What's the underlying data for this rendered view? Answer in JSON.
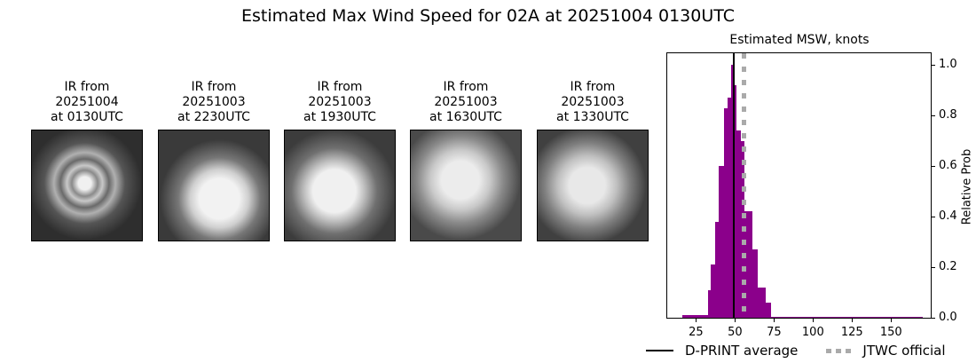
{
  "figure": {
    "title": "Estimated Max Wind Speed for 02A at 20251004 0130UTC"
  },
  "ir_panels": [
    {
      "line1": "IR from",
      "line2": "20251004",
      "line3": "at 0130UTC"
    },
    {
      "line1": "IR from",
      "line2": "20251003",
      "line3": "at 2230UTC"
    },
    {
      "line1": "IR from",
      "line2": "20251003",
      "line3": "at 1930UTC"
    },
    {
      "line1": "IR from",
      "line2": "20251003",
      "line3": "at 1630UTC"
    },
    {
      "line1": "IR from",
      "line2": "20251003",
      "line3": "at 1330UTC"
    }
  ],
  "colors": {
    "histogram": "#8b008b",
    "mean_line": "#000000",
    "jtwc_line": "#aaaaaa"
  },
  "chart_data": {
    "type": "bar",
    "title": "Estimated MSW, knots",
    "xlabel": "",
    "ylabel": "Relative Prob",
    "xlim": [
      6,
      176
    ],
    "ylim": [
      0,
      1.05
    ],
    "xticks": [
      25,
      50,
      75,
      100,
      125,
      150
    ],
    "yticks": [
      "0.0",
      "0.2",
      "0.4",
      "0.6",
      "0.8",
      "1.0"
    ],
    "bins": [
      {
        "x0": 15.7,
        "x1": 32.0,
        "value": 0.01
      },
      {
        "x0": 32.0,
        "x1": 33.8,
        "value": 0.11
      },
      {
        "x0": 33.8,
        "x1": 36.7,
        "value": 0.21
      },
      {
        "x0": 36.7,
        "x1": 39.0,
        "value": 0.38
      },
      {
        "x0": 39.0,
        "x1": 42.4,
        "value": 0.6
      },
      {
        "x0": 42.4,
        "x1": 44.6,
        "value": 0.83
      },
      {
        "x0": 44.6,
        "x1": 46.9,
        "value": 0.87
      },
      {
        "x0": 46.9,
        "x1": 49.2,
        "value": 1.0
      },
      {
        "x0": 49.2,
        "x1": 50.3,
        "value": 0.92
      },
      {
        "x0": 50.3,
        "x1": 53.2,
        "value": 0.74
      },
      {
        "x0": 53.2,
        "x1": 55.4,
        "value": 0.7
      },
      {
        "x0": 55.4,
        "x1": 60.5,
        "value": 0.42
      },
      {
        "x0": 60.5,
        "x1": 64.0,
        "value": 0.27
      },
      {
        "x0": 64.0,
        "x1": 69.0,
        "value": 0.12
      },
      {
        "x0": 69.0,
        "x1": 72.5,
        "value": 0.06
      },
      {
        "x0": 72.5,
        "x1": 170.0,
        "value": 0.005
      }
    ],
    "vlines": [
      {
        "name": "D-PRINT average",
        "x": 48.5,
        "style": "solid",
        "color": "#000000"
      },
      {
        "name": "JTWC official",
        "x": 55,
        "style": "dotted",
        "color": "#aaaaaa"
      }
    ],
    "legend": [
      "D-PRINT average",
      "JTWC official"
    ],
    "legend_position": "bottom",
    "grid": false
  }
}
